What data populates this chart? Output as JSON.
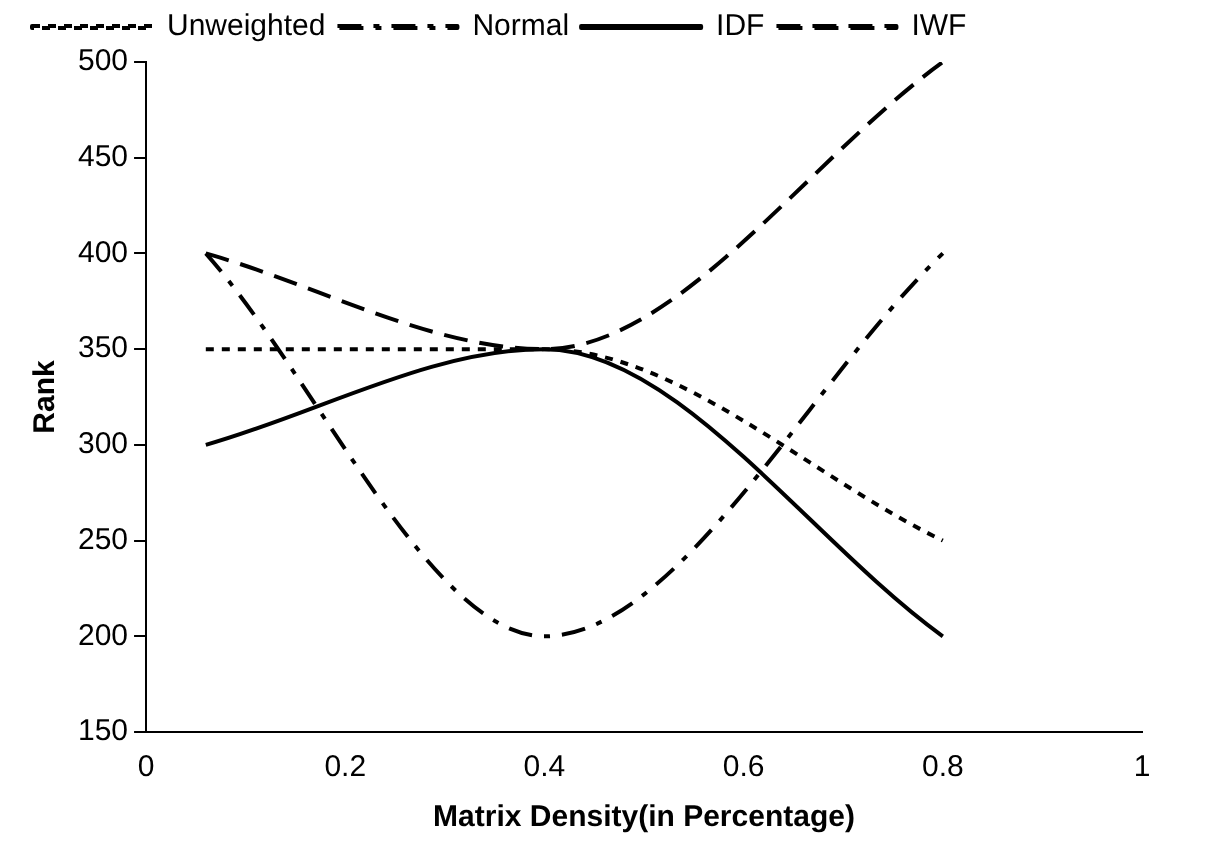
{
  "chart_data": {
    "type": "line",
    "xlabel": "Matrix Density(in Percentage)",
    "ylabel": "Rank",
    "x": [
      0.06,
      0.4,
      0.8
    ],
    "xlim": [
      0,
      1
    ],
    "xticks": [
      0,
      0.2,
      0.4,
      0.6,
      0.8,
      1
    ],
    "ylim": [
      150,
      500
    ],
    "yticks": [
      150,
      200,
      250,
      300,
      350,
      400,
      450,
      500
    ],
    "grid": false,
    "legend": "top",
    "marker": "none",
    "series": [
      {
        "name": "Unweighted",
        "color": "#000000",
        "line_style": "dotted",
        "values": [
          350,
          350,
          250
        ]
      },
      {
        "name": "Normal",
        "color": "#000000",
        "line_style": "dashdot",
        "values": [
          400,
          200,
          400
        ]
      },
      {
        "name": "IDF",
        "color": "#000000",
        "line_style": "solid",
        "values": [
          300,
          350,
          200
        ]
      },
      {
        "name": "IWF",
        "color": "#000000",
        "line_style": "dashed",
        "values": [
          400,
          350,
          500
        ]
      }
    ]
  }
}
